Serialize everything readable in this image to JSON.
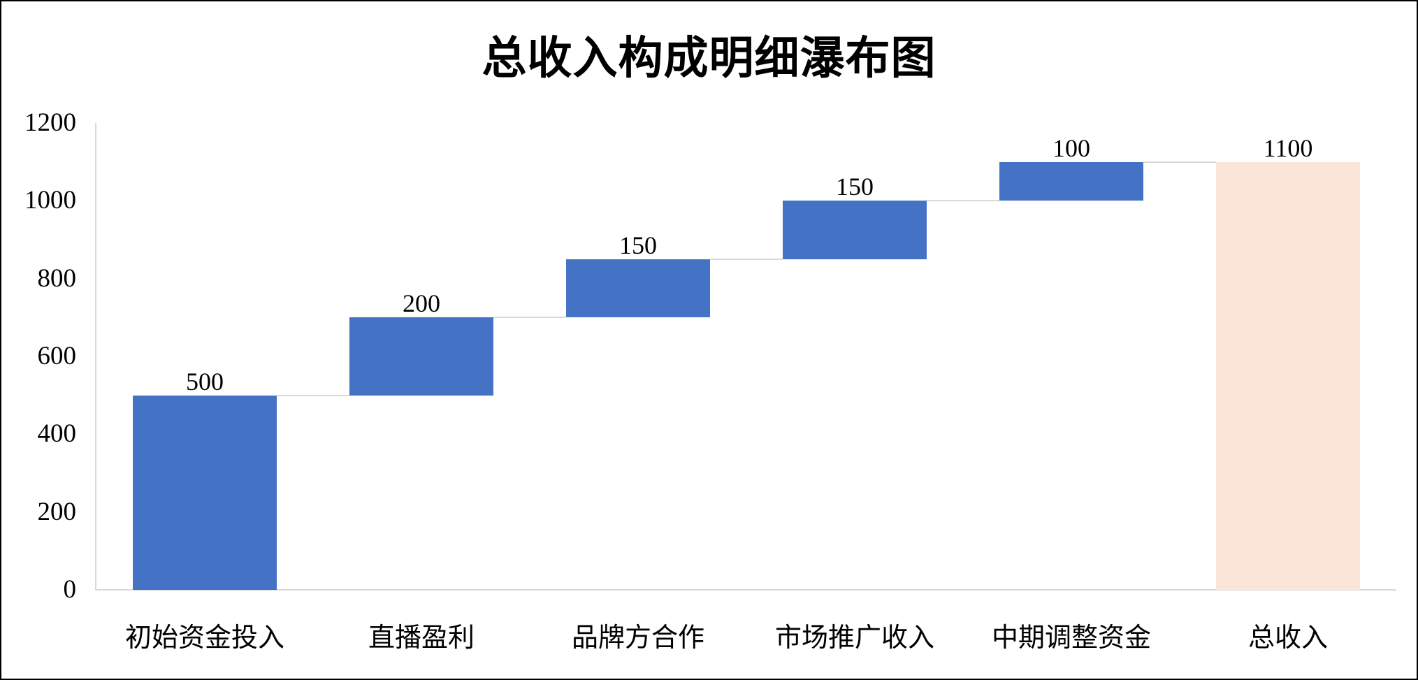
{
  "chart_data": {
    "type": "bar",
    "subtype": "waterfall",
    "title": "总收入构成明细瀑布图",
    "xlabel": "",
    "ylabel": "",
    "categories": [
      "初始资金投入",
      "直播盈利",
      "品牌方合作",
      "市场推广收入",
      "中期调整资金",
      "总收入"
    ],
    "values": [
      500,
      200,
      150,
      150,
      100,
      1100
    ],
    "bases": [
      0,
      500,
      700,
      850,
      1000,
      0
    ],
    "cumulative_tops": [
      500,
      700,
      850,
      1000,
      1100,
      1100
    ],
    "bar_kinds": [
      "increase",
      "increase",
      "increase",
      "increase",
      "increase",
      "total"
    ],
    "data_labels": [
      "500",
      "200",
      "150",
      "150",
      "100",
      "1100"
    ],
    "ylim": [
      0,
      1200
    ],
    "yticks": [
      0,
      200,
      400,
      600,
      800,
      1000,
      1200
    ],
    "ytick_labels": [
      "0",
      "200",
      "400",
      "600",
      "800",
      "1000",
      "1200"
    ],
    "grid": false,
    "legend": null,
    "connector_lines": true,
    "colors": {
      "increase": "#4472C4",
      "total": "#FBE5D6",
      "axis": "#D9D9D9",
      "connector": "#D9D9D9",
      "border": "#000000"
    }
  }
}
